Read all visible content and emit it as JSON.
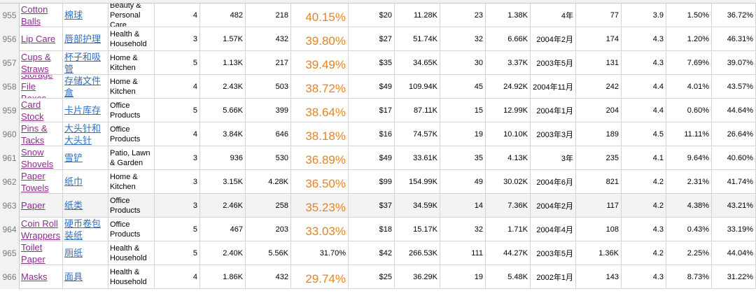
{
  "rows": [
    {
      "num": "955",
      "name": "Cotton Balls",
      "cn": "棉球",
      "category": "Beauty & Personal Care",
      "c4": "4",
      "c5": "482",
      "c6": "218",
      "pct": "40.15%",
      "price": "$20",
      "rev": "11.28K",
      "c10": "23",
      "c11": "1.38K",
      "date": "4年",
      "c13": "77",
      "rating": "3.9",
      "c15": "1.50%",
      "c16": "36.72%"
    },
    {
      "num": "956",
      "name": "Lip Care",
      "cn": "唇部护理",
      "category": "Health & Household",
      "c4": "3",
      "c5": "1.57K",
      "c6": "432",
      "pct": "39.80%",
      "price": "$27",
      "rev": "51.74K",
      "c10": "32",
      "c11": "6.66K",
      "date": "2004年2月",
      "c13": "174",
      "rating": "4.3",
      "c15": "1.20%",
      "c16": "46.31%"
    },
    {
      "num": "957",
      "name": "Cups & Straws",
      "cn": "杯子和吸管",
      "category": "Home & Kitchen",
      "c4": "5",
      "c5": "1.13K",
      "c6": "217",
      "pct": "39.49%",
      "price": "$35",
      "rev": "34.65K",
      "c10": "30",
      "c11": "3.37K",
      "date": "2003年5月",
      "c13": "131",
      "rating": "4.3",
      "c15": "7.69%",
      "c16": "39.07%"
    },
    {
      "num": "958",
      "name": "Storage File Boxes",
      "cn": "存储文件盒",
      "category": "Home & Kitchen",
      "c4": "4",
      "c5": "2.43K",
      "c6": "503",
      "pct": "38.72%",
      "price": "$49",
      "rev": "109.94K",
      "c10": "45",
      "c11": "24.92K",
      "date": "2004年11月",
      "c13": "242",
      "rating": "4.4",
      "c15": "4.01%",
      "c16": "43.57%"
    },
    {
      "num": "959",
      "name": "Card Stock",
      "cn": "卡片库存",
      "category": "Office Products",
      "c4": "5",
      "c5": "5.66K",
      "c6": "399",
      "pct": "38.64%",
      "price": "$17",
      "rev": "87.11K",
      "c10": "15",
      "c11": "12.99K",
      "date": "2004年1月",
      "c13": "204",
      "rating": "4.4",
      "c15": "0.60%",
      "c16": "44.64%"
    },
    {
      "num": "960",
      "name": "Pins & Tacks",
      "cn": "大头针和大头针",
      "category": "Office Products",
      "c4": "4",
      "c5": "3.84K",
      "c6": "646",
      "pct": "38.18%",
      "price": "$16",
      "rev": "74.57K",
      "c10": "19",
      "c11": "10.10K",
      "date": "2003年3月",
      "c13": "189",
      "rating": "4.5",
      "c15": "11.11%",
      "c16": "26.64%"
    },
    {
      "num": "961",
      "name": "Snow Shovels",
      "cn": "雪铲",
      "category": "Patio, Lawn & Garden",
      "c4": "3",
      "c5": "936",
      "c6": "530",
      "pct": "36.89%",
      "price": "$49",
      "rev": "33.61K",
      "c10": "35",
      "c11": "4.13K",
      "date": "3年",
      "c13": "235",
      "rating": "4.1",
      "c15": "9.64%",
      "c16": "40.60%"
    },
    {
      "num": "962",
      "name": "Paper Towels",
      "cn": "纸巾",
      "category": "Home & Kitchen",
      "c4": "3",
      "c5": "3.15K",
      "c6": "4.28K",
      "pct": "36.50%",
      "price": "$99",
      "rev": "154.99K",
      "c10": "49",
      "c11": "30.02K",
      "date": "2004年6月",
      "c13": "821",
      "rating": "4.2",
      "c15": "2.31%",
      "c16": "41.74%"
    },
    {
      "num": "963",
      "name": "Paper",
      "cn": "纸类",
      "category": "Office Products",
      "c4": "3",
      "c5": "2.46K",
      "c6": "258",
      "pct": "35.23%",
      "price": "$37",
      "rev": "34.59K",
      "c10": "14",
      "c11": "7.36K",
      "date": "2004年2月",
      "c13": "117",
      "rating": "4.2",
      "c15": "4.38%",
      "c16": "43.21%"
    },
    {
      "num": "964",
      "name": "Coin Roll Wrappers",
      "cn": "硬币卷包装纸",
      "category": "Office Products",
      "c4": "5",
      "c5": "467",
      "c6": "203",
      "pct": "33.03%",
      "price": "$18",
      "rev": "15.17K",
      "c10": "32",
      "c11": "1.71K",
      "date": "2004年4月",
      "c13": "108",
      "rating": "4.3",
      "c15": "0.43%",
      "c16": "33.19%"
    },
    {
      "num": "965",
      "name": "Toilet Paper",
      "cn": "厕纸",
      "category": "Health & Household",
      "c4": "5",
      "c5": "2.40K",
      "c6": "5.56K",
      "pct": "31.70%",
      "price": "$42",
      "rev": "266.53K",
      "c10": "111",
      "c11": "44.27K",
      "date": "2003年5月",
      "c13": "1.36K",
      "rating": "4.2",
      "c15": "2.25%",
      "c16": "44.04%"
    },
    {
      "num": "966",
      "name": "Masks",
      "cn": "面具",
      "category": "Health & Household",
      "c4": "4",
      "c5": "1.86K",
      "c6": "432",
      "pct": "29.74%",
      "price": "$25",
      "rev": "36.29K",
      "c10": "19",
      "c11": "5.48K",
      "date": "2002年1月",
      "c13": "143",
      "rating": "4.3",
      "c15": "8.73%",
      "c16": "31.22%"
    }
  ],
  "highlight_row": "963",
  "plain_pct_row": "965",
  "colors": {
    "name_link": "#8e2b8f",
    "cn_link": "#2e6fc0",
    "pct_orange": "#e8821e"
  }
}
